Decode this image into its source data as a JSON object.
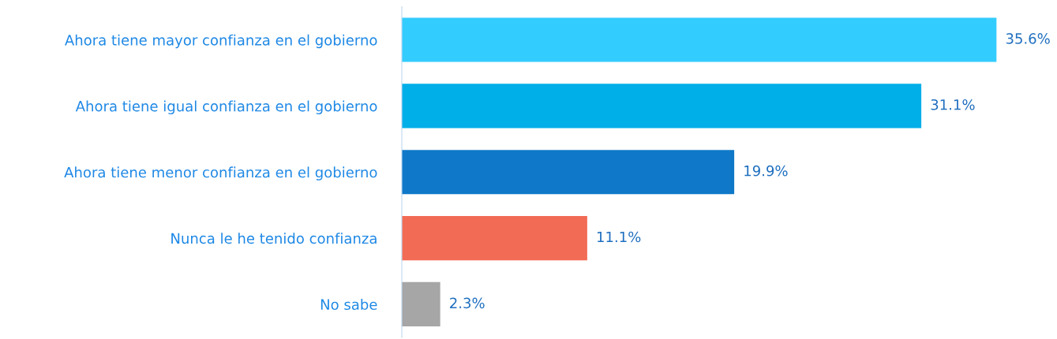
{
  "chart_data": {
    "type": "bar",
    "orientation": "horizontal",
    "categories": [
      "Ahora tiene mayor confianza en el gobierno",
      "Ahora tiene igual confianza en el gobierno",
      "Ahora tiene menor confianza en el gobierno",
      "Nunca le he tenido confianza",
      "No sabe"
    ],
    "values": [
      35.6,
      31.1,
      19.9,
      11.1,
      2.3
    ],
    "value_labels": [
      "35.6%",
      "31.1%",
      "19.9%",
      "11.1%",
      "2.3%"
    ],
    "colors": [
      "#33ccff",
      "#00aee8",
      "#0f78c8",
      "#f26b55",
      "#a6a6a6"
    ],
    "tick_labels": "y",
    "grid": false,
    "legend": false
  }
}
